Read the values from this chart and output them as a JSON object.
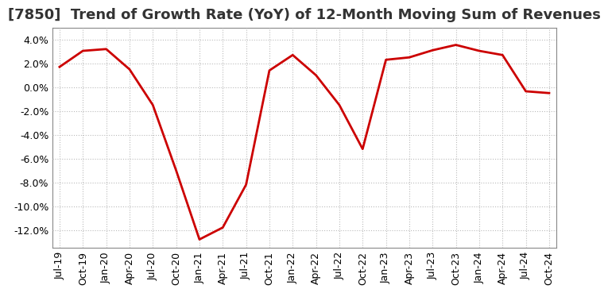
{
  "title": "[7850]  Trend of Growth Rate (YoY) of 12-Month Moving Sum of Revenues",
  "line_color": "#cc0000",
  "background_color": "#ffffff",
  "grid_color": "#bbbbbb",
  "x_labels": [
    "Jul-19",
    "Oct-19",
    "Jan-20",
    "Apr-20",
    "Jul-20",
    "Oct-20",
    "Jan-21",
    "Apr-21",
    "Jul-21",
    "Oct-21",
    "Jan-22",
    "Apr-22",
    "Jul-22",
    "Oct-22",
    "Jan-23",
    "Apr-23",
    "Jul-23",
    "Oct-23",
    "Jan-24",
    "Apr-24",
    "Jul-24",
    "Oct-24"
  ],
  "y_values": [
    1.7,
    3.05,
    3.2,
    1.5,
    -1.5,
    -7.0,
    -12.8,
    -11.8,
    -8.2,
    1.4,
    2.7,
    1.0,
    -1.5,
    -5.2,
    2.3,
    2.5,
    3.1,
    3.55,
    3.05,
    2.7,
    -0.35,
    -0.5
  ],
  "ylim": [
    -13.5,
    5.0
  ],
  "yticks": [
    -12.0,
    -10.0,
    -8.0,
    -6.0,
    -4.0,
    -2.0,
    0.0,
    2.0,
    4.0
  ],
  "title_fontsize": 13,
  "tick_fontsize": 9,
  "line_width": 2.0
}
